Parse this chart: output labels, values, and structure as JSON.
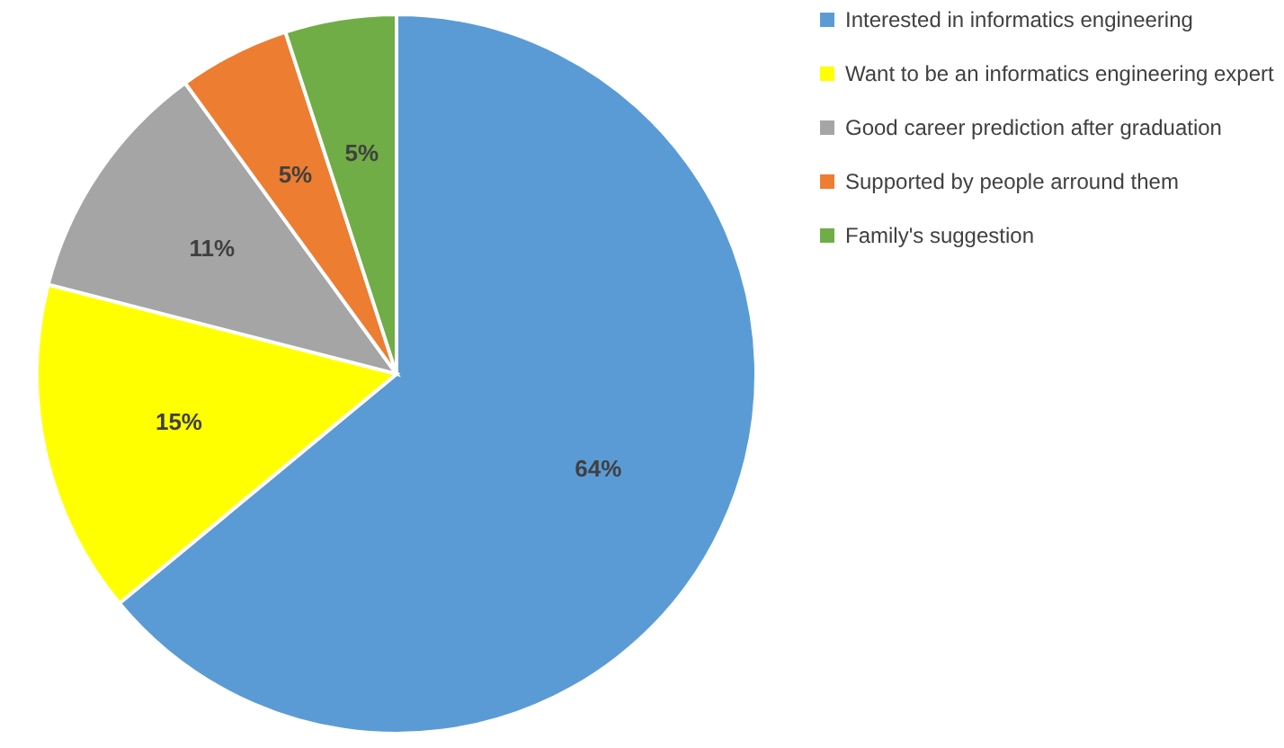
{
  "chart_data": {
    "type": "pie",
    "categories": [
      "Interested in informatics engineering",
      "Want to be an informatics engineering expert",
      "Good career prediction after graduation",
      "Supported by people arround them",
      "Family's suggestion"
    ],
    "values": [
      64,
      15,
      11,
      5,
      5
    ],
    "colors": [
      "#5b9bd5",
      "#ffff00",
      "#a5a5a5",
      "#ed7d31",
      "#70ad47"
    ],
    "value_labels": [
      "64%",
      "15%",
      "11%",
      "5%",
      "5%"
    ],
    "legend": "right"
  }
}
